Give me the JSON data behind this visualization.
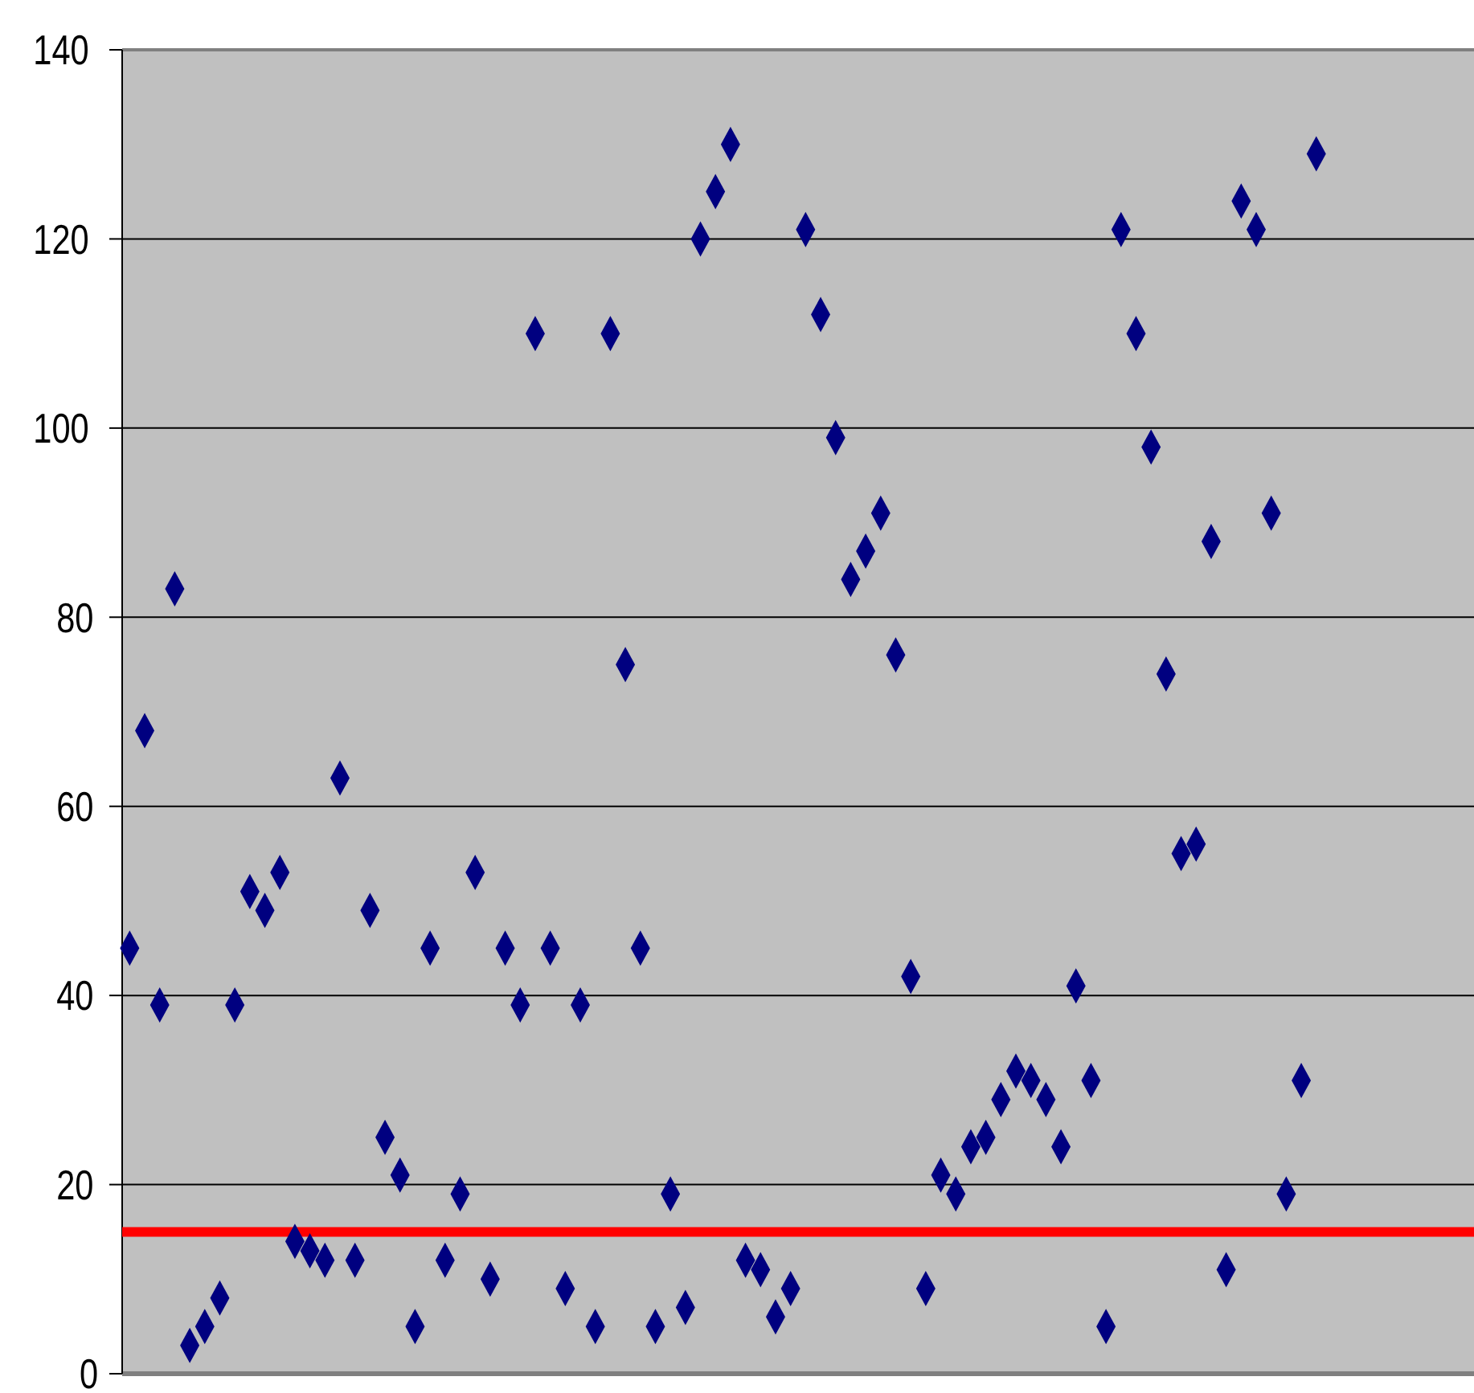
{
  "chart_data": {
    "type": "scatter",
    "categories": [
      null,
      null,
      null,
      null,
      null,
      null,
      null,
      null,
      null,
      null,
      null,
      null,
      null,
      null,
      null,
      null,
      null,
      null,
      null,
      null,
      null,
      null,
      null,
      null,
      null,
      null,
      null,
      null,
      null,
      null,
      null,
      null,
      null,
      null,
      null,
      null,
      null,
      null,
      null,
      null,
      null,
      null,
      null,
      null,
      null,
      null,
      null,
      null,
      null,
      null,
      null,
      null,
      null,
      null,
      null,
      null,
      null,
      null,
      null,
      null,
      null,
      null,
      null,
      null,
      null,
      null,
      null,
      null,
      null,
      null,
      null,
      null,
      null,
      null,
      null,
      null,
      null,
      null,
      null,
      null,
      null,
      null,
      null,
      null,
      null,
      null,
      null,
      null,
      null,
      null
    ],
    "series": [
      {
        "color": "#000080",
        "values": [
          45,
          68,
          39,
          83,
          3,
          5,
          8,
          39,
          51,
          49,
          53,
          14,
          13,
          12,
          63,
          12,
          49,
          25,
          21,
          5,
          45,
          12,
          19,
          53,
          10,
          45,
          39,
          110,
          45,
          9,
          39,
          5,
          110,
          75,
          45,
          5,
          19,
          7,
          120,
          125,
          130,
          12,
          11,
          6,
          9,
          121,
          112,
          99,
          84,
          87,
          91,
          76,
          42,
          9,
          21,
          19,
          24,
          25,
          29,
          32,
          31,
          29,
          24,
          41,
          31,
          5,
          121,
          110,
          98,
          74,
          55,
          56,
          88,
          11,
          124,
          121,
          91,
          19,
          31,
          129,
          null,
          null,
          null,
          null,
          null,
          null,
          null,
          null,
          null,
          null
        ]
      }
    ],
    "ylim": [
      0,
      140
    ],
    "yticks": [
      0,
      20,
      40,
      60,
      80,
      100,
      120,
      140
    ],
    "grid": "y",
    "marker": "diamond",
    "tick_labels": "y",
    "ref_lines": [
      {
        "axis": "y",
        "value": 15,
        "color": "#ff0000"
      }
    ]
  }
}
